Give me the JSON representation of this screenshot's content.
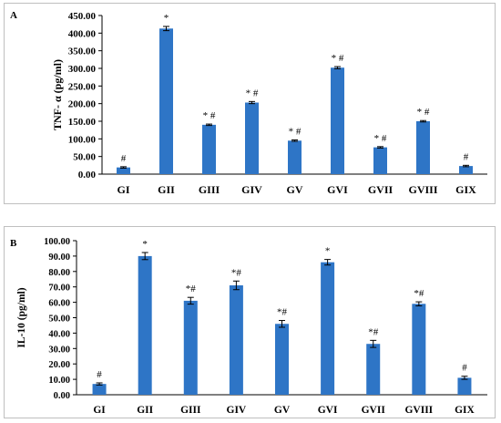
{
  "chart_data": [
    {
      "panel": "A",
      "type": "bar",
      "ylabel": "TNF- α (pg/ml)",
      "ylim": [
        0,
        450
      ],
      "yticks": [
        "0.00",
        "50.00",
        "100.00",
        "150.00",
        "200.00",
        "250.00",
        "300.00",
        "350.00",
        "400.00",
        "450.00"
      ],
      "categories": [
        "GI",
        "GII",
        "GIII",
        "GIV",
        "GV",
        "GVI",
        "GVII",
        "GVIII",
        "GIX"
      ],
      "values": [
        19,
        413,
        140,
        203,
        95,
        302,
        76,
        150,
        23
      ],
      "errors": [
        2,
        6,
        2,
        3,
        2,
        3,
        2,
        2,
        2
      ],
      "annotations": [
        "#",
        "*",
        "* #",
        "* #",
        "* #",
        "* #",
        "* #",
        "* #",
        "#"
      ],
      "bar_color": "#2e75c6",
      "grid": false
    },
    {
      "panel": "B",
      "type": "bar",
      "ylabel": "IL-10 (pg/ml)",
      "ylim": [
        0,
        100
      ],
      "yticks": [
        "0.00",
        "10.00",
        "20.00",
        "30.00",
        "40.00",
        "50.00",
        "60.00",
        "70.00",
        "80.00",
        "90.00",
        "100.00"
      ],
      "categories": [
        "GI",
        "GII",
        "GIII",
        "GIV",
        "GV",
        "GVI",
        "GVII",
        "GVIII",
        "GIX"
      ],
      "values": [
        7,
        90,
        61,
        71,
        46,
        86,
        33,
        59,
        11
      ],
      "errors": [
        0.7,
        2.3,
        2.2,
        2.8,
        2.2,
        1.8,
        2.3,
        1.3,
        1.0
      ],
      "annotations": [
        "#",
        "*",
        "*#",
        "*#",
        "*#",
        "*",
        "*#",
        "*#",
        "#"
      ],
      "bar_color": "#2e75c6",
      "grid": false
    }
  ]
}
